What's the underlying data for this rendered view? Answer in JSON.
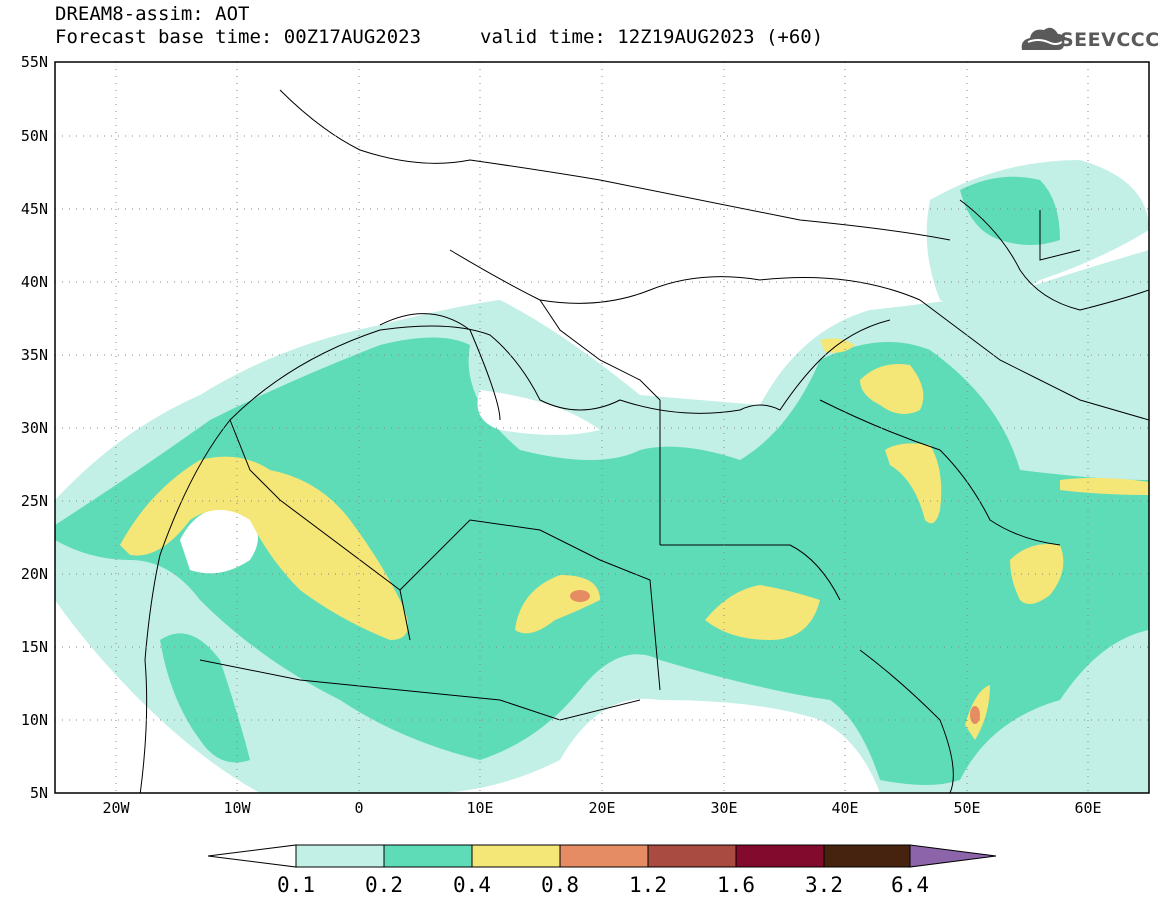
{
  "header": {
    "title": "DREAM8-assim: AOT",
    "base_time": "Forecast base time: 00Z17AUG2023",
    "valid_time": "valid time: 12Z19AUG2023 (+60)",
    "logo_text": "SEEVCCC",
    "logo_icon": "cloud-icon"
  },
  "map": {
    "lon_range": [
      -25,
      65
    ],
    "lat_range": [
      5,
      55
    ],
    "y_ticks": [
      "55N",
      "50N",
      "45N",
      "40N",
      "35N",
      "30N",
      "25N",
      "20N",
      "15N",
      "10N",
      "5N"
    ],
    "x_ticks": [
      "20W",
      "10W",
      "0",
      "10E",
      "20E",
      "30E",
      "40E",
      "50E",
      "60E"
    ],
    "grid": "dotted",
    "frame_color": "#000000"
  },
  "colorbar": {
    "labels": [
      "0.1",
      "0.2",
      "0.4",
      "0.8",
      "1.2",
      "1.6",
      "3.2",
      "6.4"
    ],
    "colors": [
      "#ffffff",
      "#c3f0e6",
      "#5edcb8",
      "#f5e678",
      "#e68c64",
      "#aa4b41",
      "#820a2d",
      "#46230f",
      "#8c64aa"
    ]
  }
}
